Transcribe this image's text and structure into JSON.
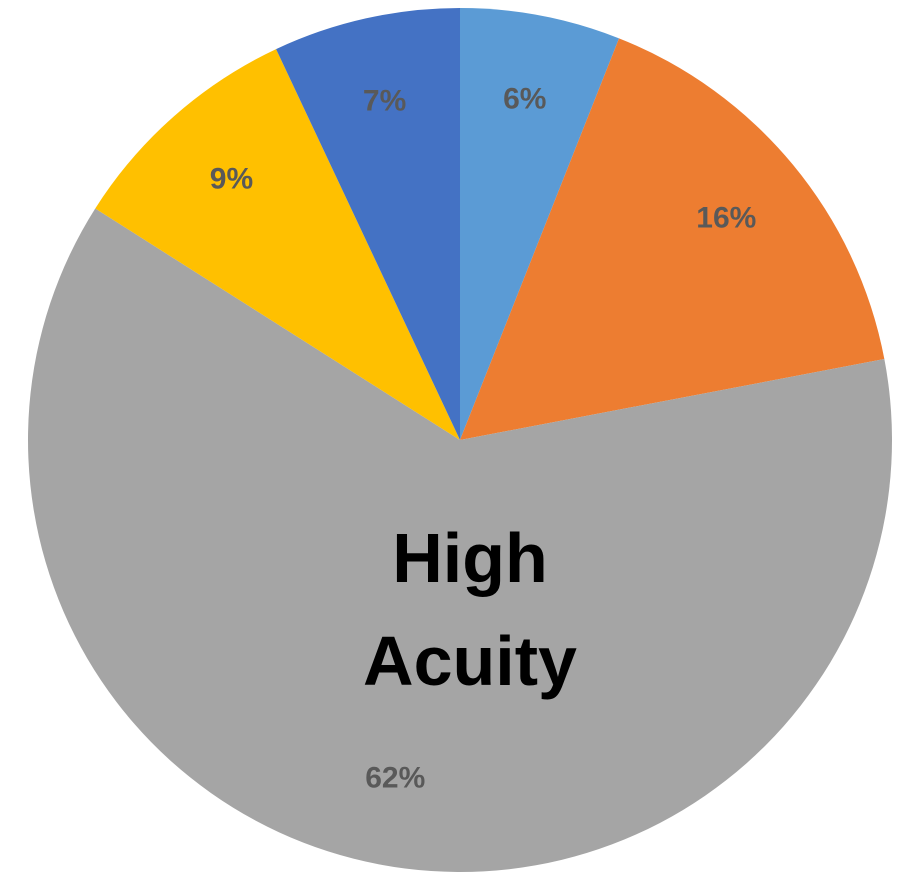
{
  "chart_data": {
    "type": "pie",
    "start_angle_deg": 0,
    "direction": "clockwise",
    "slices": [
      {
        "value": 6,
        "label": "6%",
        "color": "#5B9BD5"
      },
      {
        "value": 16,
        "label": "16%",
        "color": "#ED7D31"
      },
      {
        "value": 62,
        "label": "62%",
        "color": "#A5A5A5"
      },
      {
        "value": 9,
        "label": "9%",
        "color": "#FFC000"
      },
      {
        "value": 7,
        "label": "7%",
        "color": "#4472C4"
      }
    ],
    "annotation": {
      "line1": "High",
      "line2": "Acuity"
    },
    "legend": "none"
  }
}
